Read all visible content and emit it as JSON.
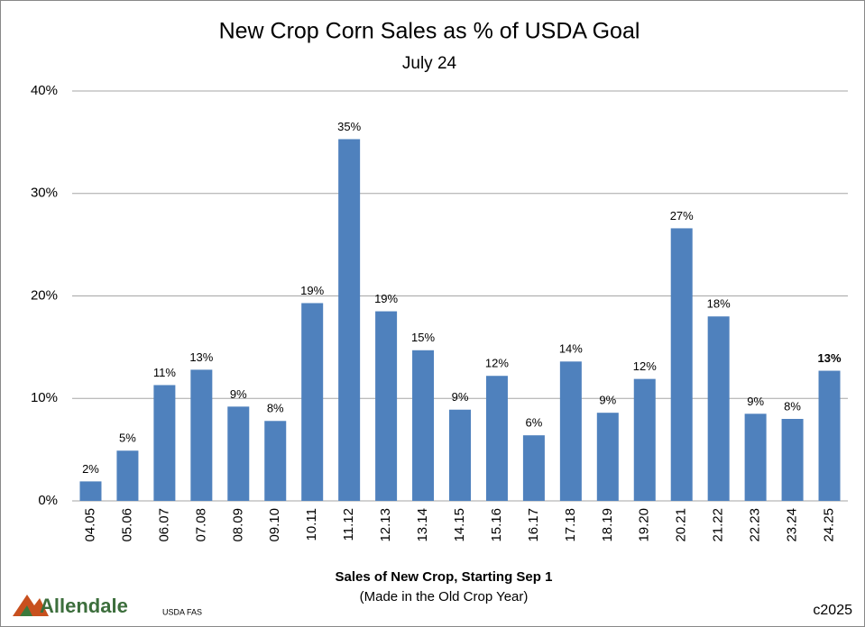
{
  "chart_data": {
    "type": "bar",
    "title": "New Crop Corn Sales as % of USDA Goal",
    "subtitle": "July 24",
    "categories": [
      "04.05",
      "05.06",
      "06.07",
      "07.08",
      "08.09",
      "09.10",
      "10.11",
      "11.12",
      "12.13",
      "13.14",
      "14.15",
      "15.16",
      "16.17",
      "17.18",
      "18.19",
      "19.20",
      "20.21",
      "21.22",
      "22.23",
      "23.24",
      "24.25"
    ],
    "values": [
      1.9,
      4.9,
      11.3,
      12.8,
      9.2,
      7.8,
      19.3,
      35.3,
      18.5,
      14.7,
      8.9,
      12.2,
      6.4,
      13.6,
      8.6,
      11.9,
      26.6,
      18.0,
      8.5,
      8.0,
      12.7
    ],
    "value_labels": [
      "2%",
      "5%",
      "11%",
      "13%",
      "9%",
      "8%",
      "19%",
      "35%",
      "19%",
      "15%",
      "9%",
      "12%",
      "6%",
      "14%",
      "9%",
      "12%",
      "27%",
      "18%",
      "9%",
      "8%",
      "13%"
    ],
    "bold_last_label": true,
    "color": "#4f81bd",
    "ylim": [
      0,
      40
    ],
    "yticks": [
      {
        "value": 0,
        "label": "0%"
      },
      {
        "value": 10,
        "label": "10%"
      },
      {
        "value": 20,
        "label": "20%"
      },
      {
        "value": 30,
        "label": "30%"
      },
      {
        "value": 40,
        "label": "40%"
      }
    ],
    "grid": true,
    "xlabel": "Sales of New Crop, Starting Sep 1",
    "xlabel_note": "(Made in the Old Crop Year)",
    "logo": "Allendale",
    "source": "USDA FAS",
    "copyright": "c2025"
  }
}
